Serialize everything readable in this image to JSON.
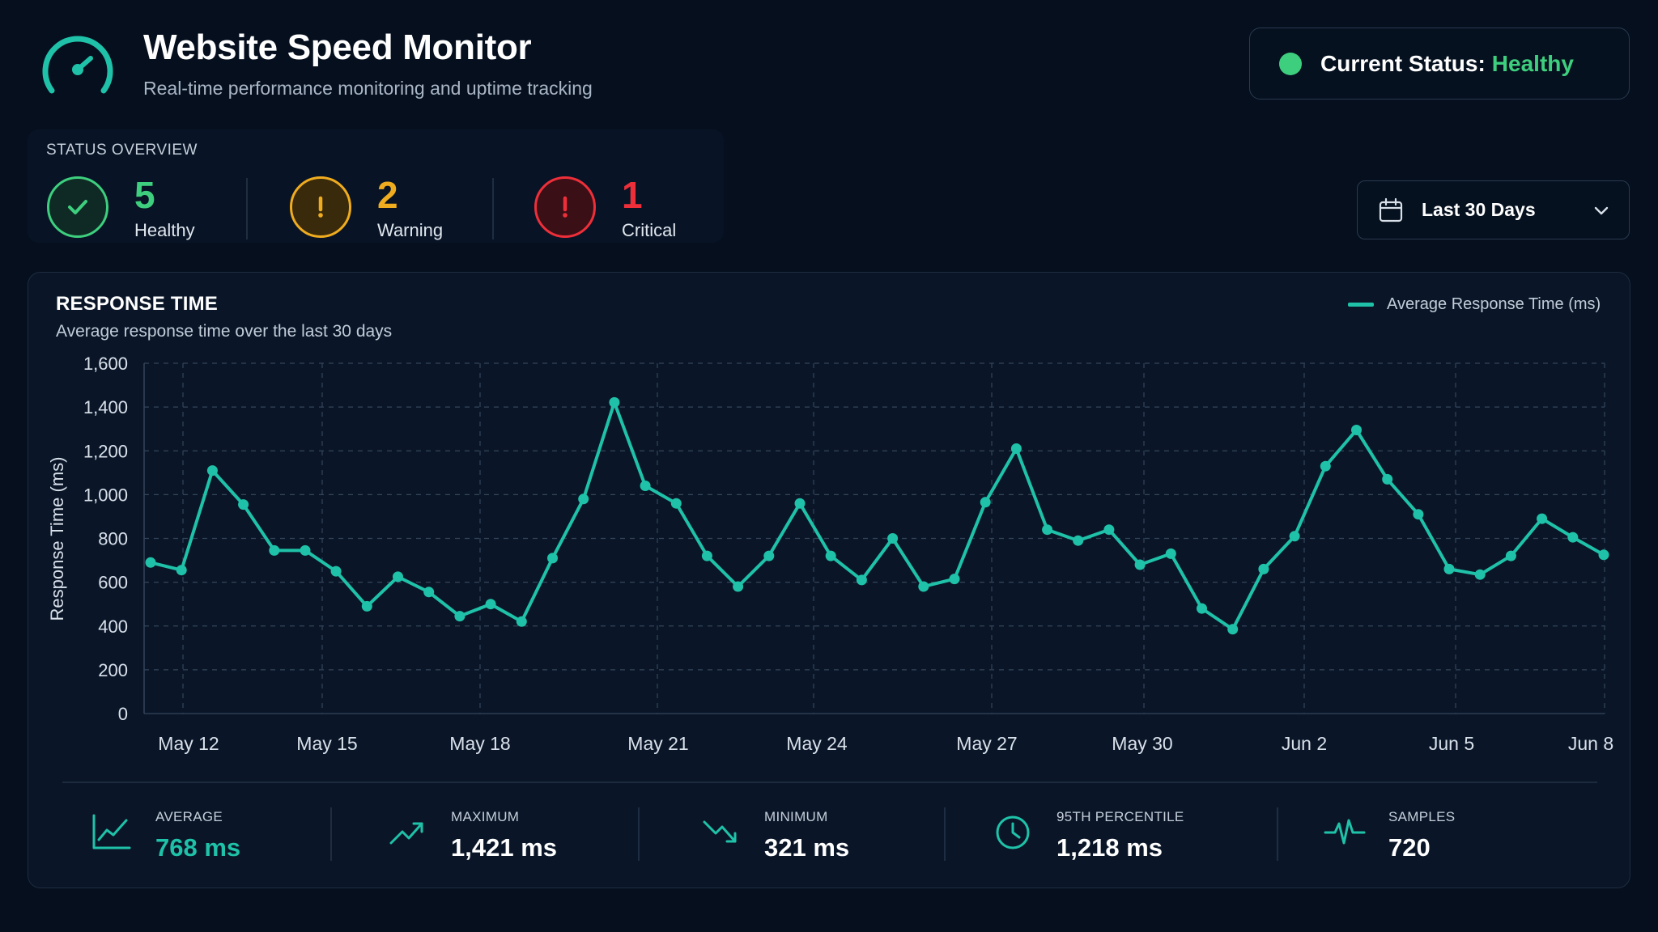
{
  "header": {
    "title": "Website Speed Monitor",
    "subtitle": "Real-time performance monitoring and uptime tracking",
    "logo_icon": "speedometer-icon"
  },
  "current_status": {
    "label": "Current Status:",
    "value": "Healthy",
    "color": "#3ecf7e"
  },
  "overview": {
    "label": "STATUS OVERVIEW",
    "items": [
      {
        "count": "5",
        "name": "Healthy",
        "icon": "check-icon",
        "color": "#3ecf7e"
      },
      {
        "count": "2",
        "name": "Warning",
        "icon": "exclamation-icon",
        "color": "#f0ac1f"
      },
      {
        "count": "1",
        "name": "Critical",
        "icon": "exclamation-icon",
        "color": "#ee2f3a"
      }
    ]
  },
  "range_select": {
    "value": "Last 30 Days",
    "icon": "calendar-icon"
  },
  "panel": {
    "title": "RESPONSE TIME",
    "subtitle": "Average response time over the last 30 days",
    "legend": "Average Response Time (ms)"
  },
  "chart_data": {
    "type": "line",
    "title": "RESPONSE TIME",
    "subtitle": "Average response time over the last 30 days",
    "ylabel": "Response Time (ms)",
    "xlabel": "",
    "ylim": [
      0,
      1600
    ],
    "yticks": [
      "0",
      "200",
      "400",
      "600",
      "800",
      "1,000",
      "1,200",
      "1,400",
      "1,600"
    ],
    "xtick_labels": [
      "May 12",
      "May 15",
      "May 18",
      "May 21",
      "May 24",
      "May 27",
      "May 30",
      "Jun 2",
      "Jun 5",
      "Jun 8"
    ],
    "grid": true,
    "legend_position": "top-right",
    "color": "#1fc2a8",
    "series": [
      {
        "name": "Average Response Time (ms)",
        "values": [
          690,
          655,
          1110,
          955,
          745,
          745,
          650,
          490,
          625,
          555,
          445,
          500,
          420,
          710,
          980,
          1421,
          1040,
          960,
          720,
          580,
          720,
          960,
          720,
          610,
          800,
          580,
          615,
          965,
          1210,
          840,
          790,
          840,
          680,
          730,
          480,
          385,
          660,
          810,
          1130,
          1295,
          1070,
          910,
          660,
          635,
          720,
          890,
          805,
          725
        ]
      }
    ]
  },
  "stats": [
    {
      "label": "AVERAGE",
      "value": "768 ms",
      "icon": "line-chart-icon",
      "accent": true
    },
    {
      "label": "MAXIMUM",
      "value": "1,421 ms",
      "icon": "trending-up-icon",
      "accent": false
    },
    {
      "label": "MINIMUM",
      "value": "321 ms",
      "icon": "trending-down-icon",
      "accent": false
    },
    {
      "label": "95TH  PERCENTILE",
      "value": "1,218 ms",
      "icon": "clock-icon",
      "accent": false
    },
    {
      "label": "SAMPLES",
      "value": "720",
      "icon": "pulse-icon",
      "accent": false
    }
  ],
  "colors": {
    "accent": "#1fc2a8",
    "healthy": "#3ecf7e",
    "warning": "#f0ac1f",
    "critical": "#ee2f3a",
    "background": "#050f1e"
  }
}
